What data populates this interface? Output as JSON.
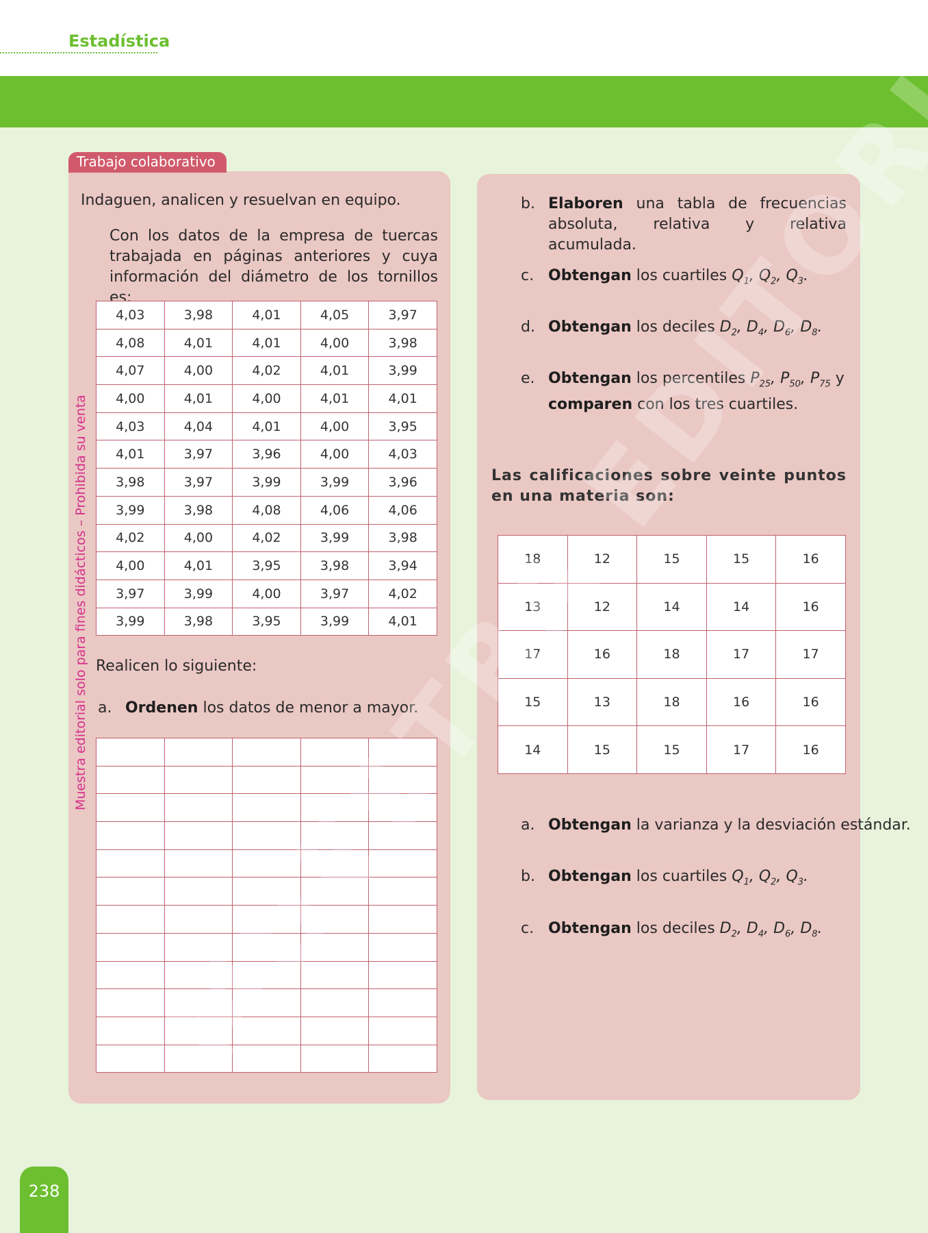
{
  "header": {
    "section": "Estadística"
  },
  "tag": "Trabajo colaborativo",
  "left": {
    "intro": "Indaguen, analicen y resuelvan en equipo.",
    "paragraph": "Con los datos de la empresa de tuercas trabajada en páginas anteriores y cuya información del diámetro de los tornillos es:",
    "table": [
      [
        "4,03",
        "3,98",
        "4,01",
        "4,05",
        "3,97"
      ],
      [
        "4,08",
        "4,01",
        "4,01",
        "4,00",
        "3,98"
      ],
      [
        "4,07",
        "4,00",
        "4,02",
        "4,01",
        "3,99"
      ],
      [
        "4,00",
        "4,01",
        "4,00",
        "4,01",
        "4,01"
      ],
      [
        "4,03",
        "4,04",
        "4,01",
        "4,00",
        "3,95"
      ],
      [
        "4,01",
        "3,97",
        "3,96",
        "4,00",
        "4,03"
      ],
      [
        "3,98",
        "3,97",
        "3,99",
        "3,99",
        "3,96"
      ],
      [
        "3,99",
        "3,98",
        "4,08",
        "4,06",
        "4,06"
      ],
      [
        "4,02",
        "4,00",
        "4,02",
        "3,99",
        "3,98"
      ],
      [
        "4,00",
        "4,01",
        "3,95",
        "3,98",
        "3,94"
      ],
      [
        "3,97",
        "3,99",
        "4,00",
        "3,97",
        "4,02"
      ],
      [
        "3,99",
        "3,98",
        "3,95",
        "3,99",
        "4,01"
      ]
    ],
    "instruction": "Realicen lo siguiente:",
    "item_a": {
      "label": "a.",
      "bold": "Ordenen",
      "text": " los datos de menor a mayor."
    }
  },
  "right": {
    "items1": [
      {
        "label": "b.",
        "bold": "Elaboren",
        "text": " una tabla de frecuencias absoluta, relativa y relativa acumulada."
      },
      {
        "label": "c.",
        "bold": "Obtengan",
        "text": " los cuartiles "
      },
      {
        "label": "d.",
        "bold": "Obtengan",
        "text": " los deciles "
      },
      {
        "label": "e.",
        "bold": "Obtengan",
        "text": " los percentiles ",
        "tail": " y ",
        "bold2": "comparen",
        "text2": " con los tres cuartiles."
      }
    ],
    "intro2": "Las calificaciones sobre veinte puntos en una materia son:",
    "table": [
      [
        "18",
        "12",
        "15",
        "15",
        "16"
      ],
      [
        "13",
        "12",
        "14",
        "14",
        "16"
      ],
      [
        "17",
        "16",
        "18",
        "17",
        "17"
      ],
      [
        "15",
        "13",
        "18",
        "16",
        "16"
      ],
      [
        "14",
        "15",
        "15",
        "17",
        "16"
      ]
    ],
    "items2": [
      {
        "label": "a.",
        "bold": "Obtengan",
        "text": " la varianza y la desviación estándar."
      },
      {
        "label": "b.",
        "bold": "Obtengan",
        "text": " los cuartiles "
      },
      {
        "label": "c.",
        "bold": "Obtengan",
        "text": " los deciles "
      }
    ]
  },
  "side_note": "Muestra editorial solo para fines didácticos – Prohibida su venta",
  "watermark": "MUESTRA EDITORIAL",
  "page_number": "238",
  "colors": {
    "green": "#6cbf2f",
    "panel": "#eac8c4",
    "border": "#c0606e",
    "tag": "#d05a6b",
    "side_note": "#d6308a"
  }
}
